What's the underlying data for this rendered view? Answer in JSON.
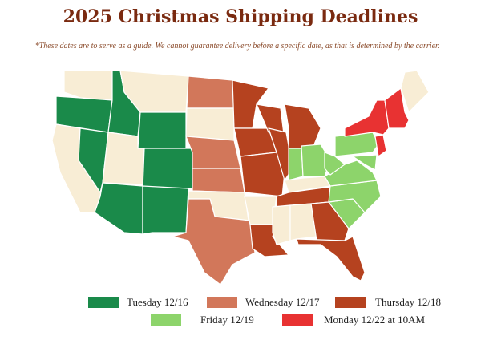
{
  "header": {
    "title": "2025 Christmas Shipping Deadlines",
    "note": "*These dates are to serve as a guide. We cannot guarantee delivery before a specific date, as that is determined by the carrier."
  },
  "legend": {
    "items": [
      {
        "label": "Tuesday 12/16",
        "color": "#1a8a4a"
      },
      {
        "label": "Wednesday 12/17",
        "color": "#d2775a"
      },
      {
        "label": "Thursday 12/18",
        "color": "#b5421f"
      },
      {
        "label": "Friday 12/19",
        "color": "#8dd46b"
      },
      {
        "label": "Monday 12/22 at 10AM",
        "color": "#e83232"
      }
    ]
  }
}
